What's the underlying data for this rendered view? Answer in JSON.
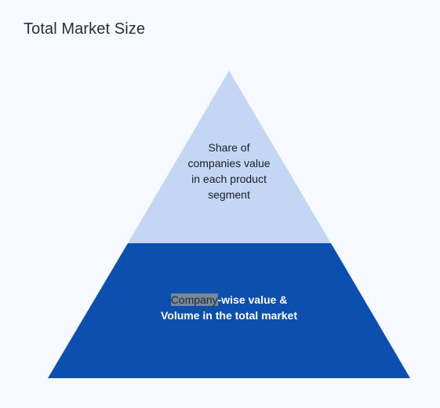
{
  "title": "Total Market Size",
  "pyramid": {
    "top_segment": {
      "lines": [
        "Share of",
        "companies value",
        "in each product",
        "segment"
      ],
      "color": "#c3d6f3"
    },
    "bottom_segment": {
      "highlighted_text": "Company",
      "rest_line1": "-wise value &",
      "line2": "Volume in the total market",
      "color": "#0c4fae"
    }
  }
}
